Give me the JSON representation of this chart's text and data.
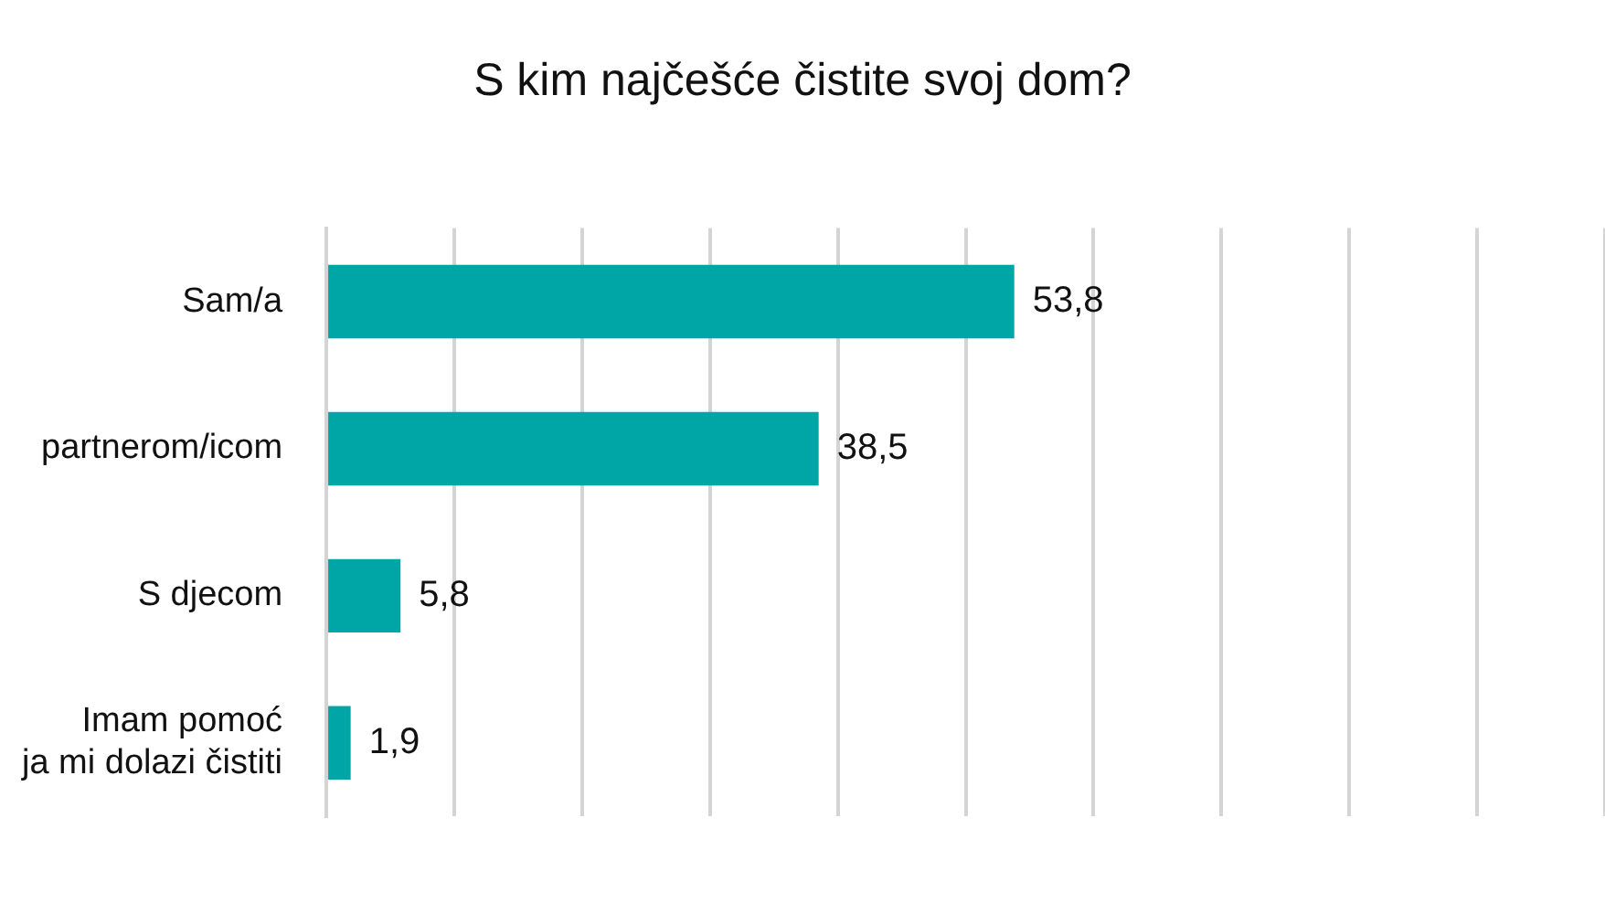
{
  "chart_data": {
    "type": "bar",
    "orientation": "horizontal",
    "title": "S kim najčešće čistite svoj dom?",
    "categories": [
      "Sam/a",
      "partnerom/icom",
      "S djecom",
      "Imam pomoć\nja mi dolazi čistiti"
    ],
    "values": [
      53.8,
      38.5,
      5.8,
      1.9
    ],
    "color": "#00a6a6",
    "value_labels": [
      "53,8",
      "38,5",
      "5,8",
      "1,9"
    ],
    "xlim": [
      0,
      100
    ],
    "xticks": [
      {
        "value": 0,
        "label": null
      },
      {
        "value": 10,
        "label": null
      },
      {
        "value": 20,
        "label": null
      },
      {
        "value": 30,
        "label": null
      },
      {
        "value": 40,
        "label": null
      },
      {
        "value": 50,
        "label": null
      },
      {
        "value": 60,
        "label": null
      },
      {
        "value": 70,
        "label": null
      },
      {
        "value": 80,
        "label": null
      },
      {
        "value": 90,
        "label": null
      },
      {
        "value": 100,
        "label": null
      }
    ],
    "grid": "x",
    "tick_labels": "y",
    "legend": false
  }
}
